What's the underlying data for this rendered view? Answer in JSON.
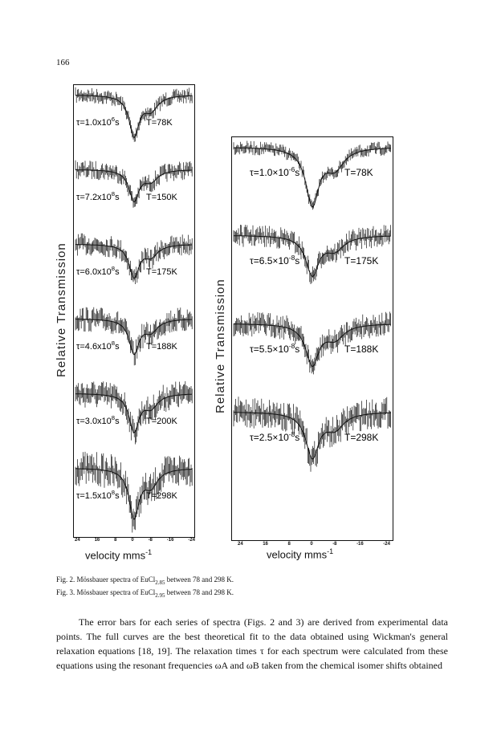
{
  "page_number": "166",
  "fig2": {
    "ylabel": "Relative Transmission",
    "xlabel": "velocity mms",
    "xlabel_sup": "-1",
    "ticks": [
      "24",
      "16",
      "8",
      "0",
      "-8",
      "-16",
      "-24"
    ],
    "spectra": [
      {
        "tau": "τ=1.0x10",
        "tau_exp": "6",
        "tau_unit": "s",
        "temp": "T=78K"
      },
      {
        "tau": "τ=7.2x10",
        "tau_exp": "8",
        "tau_unit": "s",
        "temp": "T=150K"
      },
      {
        "tau": "τ=6.0x10",
        "tau_exp": "8",
        "tau_unit": "s",
        "temp": "T=175K"
      },
      {
        "tau": "τ=4.6x10",
        "tau_exp": "8",
        "tau_unit": "s",
        "temp": "T=188K"
      },
      {
        "tau": "τ=3.0x10",
        "tau_exp": "8",
        "tau_unit": "s",
        "temp": "T=200K"
      },
      {
        "tau": "τ=1.5x10",
        "tau_exp": "8",
        "tau_unit": "s",
        "temp": "T=298K"
      }
    ]
  },
  "fig3": {
    "ylabel": "Relative Transmission",
    "xlabel": "velocity mms",
    "xlabel_sup": "-1",
    "ticks": [
      "24",
      "16",
      "8",
      "0",
      "-8",
      "-16",
      "-24"
    ],
    "spectra": [
      {
        "tau": "τ=1.0×10",
        "tau_exp": "-6",
        "tau_unit": "s",
        "temp": "T=78K"
      },
      {
        "tau": "τ=6.5×10",
        "tau_exp": "-8",
        "tau_unit": "s",
        "temp": "T=175K"
      },
      {
        "tau": "τ=5.5×10",
        "tau_exp": "-8",
        "tau_unit": "s",
        "temp": "T=188K"
      },
      {
        "tau": "τ=2.5×10",
        "tau_exp": "-8",
        "tau_unit": "s",
        "temp": "T=298K"
      }
    ]
  },
  "captions": {
    "fig2_prefix": "Fig. 2.  Mössbauer spectra of EuCl",
    "fig2_sub": "2.85",
    "fig2_suffix": " between 78 and 298 K.",
    "fig3_prefix": "Fig. 3.  Mössbauer spectra of EuCl",
    "fig3_sub": "2.95",
    "fig3_suffix": " between 78 and 298 K."
  },
  "body": "The error bars for each series of spectra (Figs. 2 and 3) are derived from experimental data points. The full curves are the best theoretical fit to the data obtained using Wickman's general relaxation equations [18, 19]. The relaxation times τ for each spectrum were calculated from these equations using the resonant frequencies ωA and ωB taken from the chemical isomer shifts obtained"
}
